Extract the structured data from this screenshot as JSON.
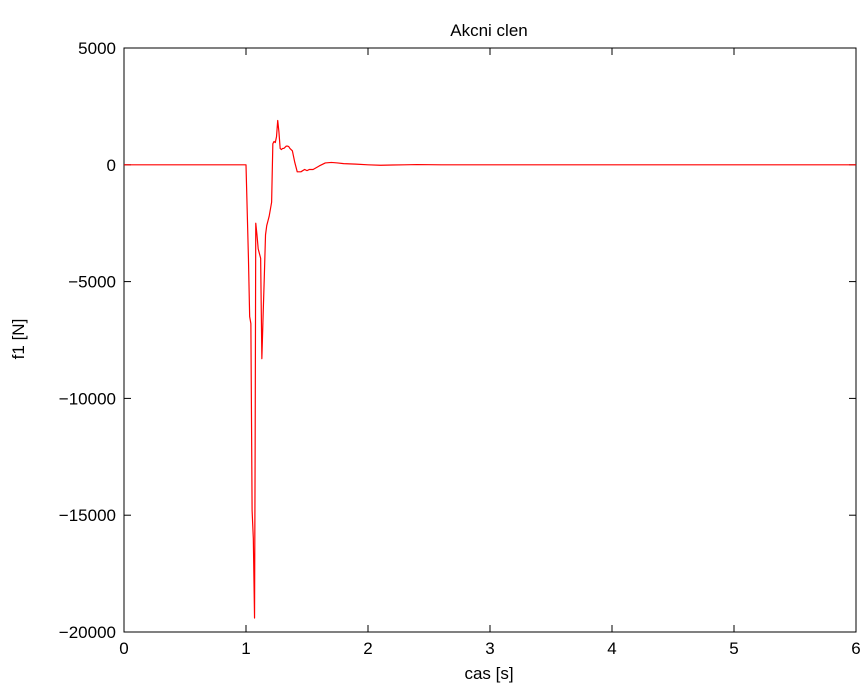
{
  "chart_data": {
    "type": "line",
    "title": "Akcni clen",
    "xlabel": "cas [s]",
    "ylabel": "f1 [N]",
    "xlim": [
      0,
      6
    ],
    "ylim": [
      -20000,
      5000
    ],
    "xticks": [
      0,
      1,
      2,
      3,
      4,
      5,
      6
    ],
    "xtick_labels": [
      "0",
      "1",
      "2",
      "3",
      "4",
      "5",
      "6"
    ],
    "yticks": [
      5000,
      0,
      -5000,
      -10000,
      -15000,
      -20000
    ],
    "ytick_labels": [
      "5000",
      "0",
      "−5000",
      "−10000",
      "−15000",
      "−20000"
    ],
    "grid": false,
    "series": [
      {
        "color": "#ff0000",
        "x": [
          0,
          1.0,
          1.01,
          1.02,
          1.03,
          1.04,
          1.05,
          1.06,
          1.07,
          1.075,
          1.08,
          1.09,
          1.1,
          1.11,
          1.12,
          1.13,
          1.14,
          1.15,
          1.16,
          1.17,
          1.18,
          1.19,
          1.2,
          1.21,
          1.22,
          1.23,
          1.24,
          1.25,
          1.26,
          1.27,
          1.28,
          1.29,
          1.3,
          1.31,
          1.32,
          1.33,
          1.34,
          1.35,
          1.36,
          1.38,
          1.4,
          1.42,
          1.45,
          1.48,
          1.5,
          1.52,
          1.55,
          1.6,
          1.65,
          1.7,
          1.75,
          1.8,
          1.85,
          1.9,
          2.0,
          2.1,
          2.2,
          2.3,
          2.4,
          2.6,
          3.0,
          6.0
        ],
        "y": [
          0,
          0,
          -2000,
          -4000,
          -6500,
          -6800,
          -14800,
          -16000,
          -19400,
          -12000,
          -2500,
          -3000,
          -3600,
          -3800,
          -4000,
          -8300,
          -6500,
          -4800,
          -3000,
          -2600,
          -2400,
          -2200,
          -1900,
          -1600,
          900,
          1000,
          950,
          1200,
          1900,
          1400,
          700,
          650,
          700,
          700,
          750,
          800,
          800,
          780,
          700,
          600,
          100,
          -300,
          -300,
          -200,
          -250,
          -200,
          -200,
          -50,
          80,
          100,
          80,
          50,
          40,
          30,
          0,
          -20,
          -10,
          0,
          10,
          0,
          0,
          0
        ]
      }
    ]
  }
}
